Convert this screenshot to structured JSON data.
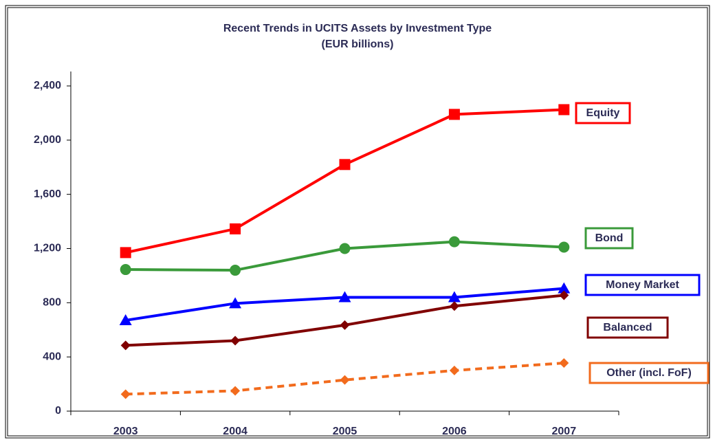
{
  "chart_data": {
    "type": "line",
    "title": "Recent Trends in UCITS Assets by Investment Type",
    "subtitle": "(EUR billions)",
    "categories": [
      "2003",
      "2004",
      "2005",
      "2006",
      "2007"
    ],
    "series": [
      {
        "name": "Equity",
        "color": "#ff0000",
        "marker": "square",
        "dashed": false,
        "values": [
          1170,
          1345,
          1820,
          2190,
          2225
        ]
      },
      {
        "name": "Bond",
        "color": "#3a9a3a",
        "marker": "circle",
        "dashed": false,
        "values": [
          1045,
          1040,
          1200,
          1250,
          1210
        ]
      },
      {
        "name": "Money Market",
        "color": "#0000ff",
        "marker": "triangle",
        "dashed": false,
        "values": [
          670,
          795,
          840,
          840,
          905
        ]
      },
      {
        "name": "Balanced",
        "color": "#800000",
        "marker": "diamond",
        "dashed": false,
        "values": [
          485,
          520,
          635,
          775,
          855
        ]
      },
      {
        "name": "Other (incl. FoF)",
        "color": "#f26b1d",
        "marker": "diamond",
        "dashed": true,
        "values": [
          125,
          150,
          230,
          300,
          355
        ]
      }
    ],
    "ylim": [
      0,
      2400
    ],
    "yticks": [
      0,
      400,
      800,
      {
        "value": 1200,
        "label": "1,200"
      },
      {
        "value": 1600,
        "label": "1,600"
      },
      {
        "value": 2000,
        "label": "2,000"
      },
      {
        "value": 2400,
        "label": "2,400"
      }
    ]
  }
}
